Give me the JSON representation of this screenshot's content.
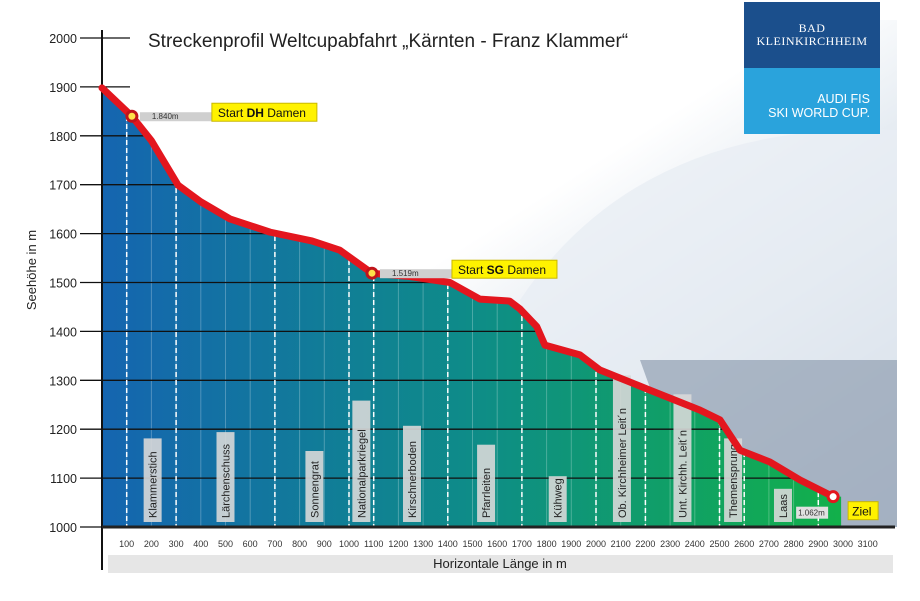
{
  "chart_data": {
    "type": "area",
    "title": "Streckenprofil Weltcupabfahrt „Kärnten - Franz Klammer“",
    "xlabel": "Horizontale Länge in m",
    "ylabel": "Seehöhe in m",
    "xlim": [
      0,
      3150
    ],
    "ylim": [
      1000,
      2000
    ],
    "x_ticks": [
      100,
      200,
      300,
      400,
      500,
      600,
      700,
      800,
      900,
      1000,
      1100,
      1200,
      1300,
      1400,
      1500,
      1600,
      1700,
      1800,
      1900,
      2000,
      2100,
      2200,
      2300,
      2400,
      2500,
      2600,
      2700,
      2800,
      2900,
      3000,
      3100
    ],
    "y_ticks": [
      1000,
      1100,
      1200,
      1300,
      1400,
      1500,
      1600,
      1700,
      1800,
      1900,
      2000
    ],
    "profile": [
      [
        0,
        1898
      ],
      [
        121,
        1840
      ],
      [
        200,
        1790
      ],
      [
        308,
        1699
      ],
      [
        400,
        1665
      ],
      [
        518,
        1630
      ],
      [
        680,
        1603
      ],
      [
        850,
        1585
      ],
      [
        963,
        1566
      ],
      [
        1093,
        1519
      ],
      [
        1250,
        1512
      ],
      [
        1409,
        1500
      ],
      [
        1530,
        1466
      ],
      [
        1650,
        1462
      ],
      [
        1692,
        1446
      ],
      [
        1760,
        1410
      ],
      [
        1793,
        1372
      ],
      [
        1935,
        1352
      ],
      [
        2016,
        1321
      ],
      [
        2218,
        1280
      ],
      [
        2421,
        1239
      ],
      [
        2502,
        1219
      ],
      [
        2583,
        1157
      ],
      [
        2704,
        1133
      ],
      [
        2826,
        1096
      ],
      [
        2960,
        1062
      ]
    ],
    "section_dividers": [
      100,
      300,
      700,
      1000,
      1100,
      1400,
      1700,
      2000,
      2200,
      2500,
      2600,
      2900
    ],
    "sections": [
      {
        "name": "Klammerstich",
        "x": 205
      },
      {
        "name": "Lärchenschuss",
        "x": 500
      },
      {
        "name": "Sonnengrat",
        "x": 860
      },
      {
        "name": "Nationalparkriegel",
        "x": 1050
      },
      {
        "name": "Kirschnerboden",
        "x": 1255
      },
      {
        "name": "Pfarrleiten",
        "x": 1555
      },
      {
        "name": "Kühweg",
        "x": 1845
      },
      {
        "name": "Ob. Kirchheimer Leit´n",
        "x": 2105
      },
      {
        "name": "Unt. Kirchh. Leit´n",
        "x": 2350
      },
      {
        "name": "Themensprung",
        "x": 2555
      },
      {
        "name": "Laas",
        "x": 2757
      }
    ],
    "markers": [
      {
        "x": 121,
        "y": 1840,
        "alt_label": "1.840m",
        "label_pre": "Start ",
        "label_bold": "DH",
        "label_post": " Damen"
      },
      {
        "x": 1093,
        "y": 1519,
        "alt_label": "1.519m",
        "label_pre": "Start ",
        "label_bold": "SG",
        "label_post": " Damen"
      },
      {
        "x": 2960,
        "y": 1062,
        "alt_label": "1.062m",
        "label_pre": "",
        "label_bold": "",
        "label_post": "Ziel"
      }
    ],
    "colors": {
      "line": "#e3161e",
      "fill_left": "#1565b0",
      "fill_right": "#12a84a",
      "label_bg": "#fff200"
    }
  },
  "logo": {
    "line1": "BAD",
    "line2": "KLEINKIRCHHEIM",
    "line3": "AUDI FIS",
    "line4": "SKI WORLD CUP."
  }
}
